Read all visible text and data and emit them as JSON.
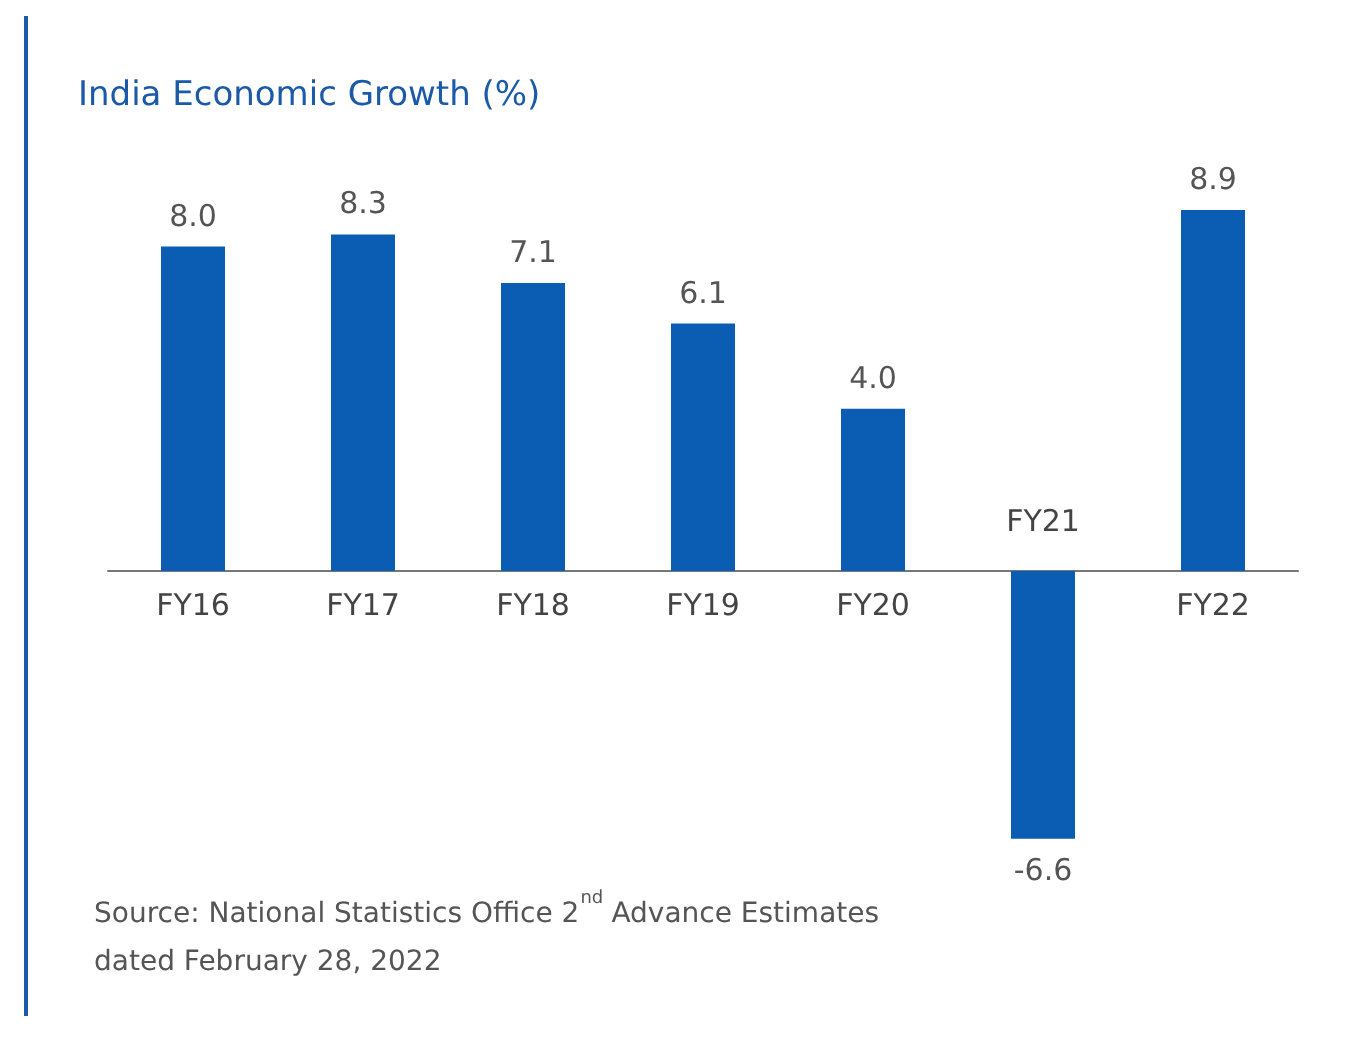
{
  "chart_data": {
    "type": "bar",
    "title": "India Economic Growth (%)",
    "categories": [
      "FY16",
      "FY17",
      "FY18",
      "FY19",
      "FY20",
      "FY21",
      "FY22"
    ],
    "values": [
      8.0,
      8.3,
      7.1,
      6.1,
      4.0,
      -6.6,
      8.9
    ],
    "value_labels": [
      "8.0",
      "8.3",
      "7.1",
      "6.1",
      "4.0",
      "-6.6",
      "8.9"
    ],
    "color": "#0b5db3",
    "annotations": [
      "Source: National Statistics Office 2$^{nd}$ Advance Estimates dated February 28, 2022"
    ]
  }
}
